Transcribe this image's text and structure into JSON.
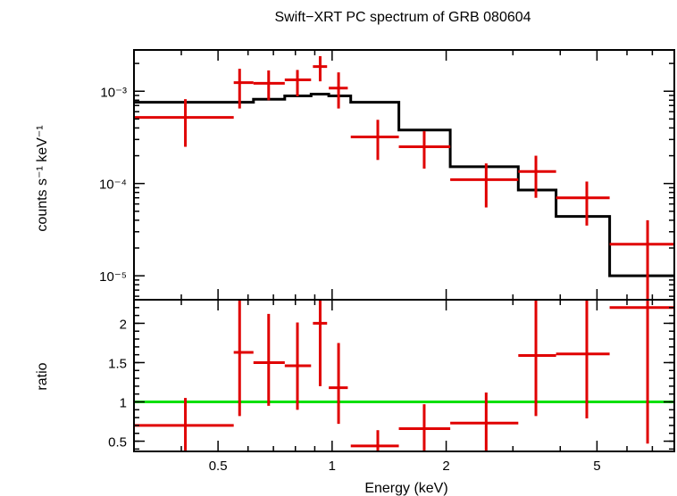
{
  "chart_data": {
    "type": "scatter",
    "title": "Swift−XRT PC spectrum of GRB 080604",
    "xlabel": "Energy (keV)",
    "xscale": "log",
    "xlim": [
      0.3,
      8.0
    ],
    "xticks": [
      {
        "value": 0.5,
        "label": "0.5"
      },
      {
        "value": 1,
        "label": "1"
      },
      {
        "value": 2,
        "label": "2"
      },
      {
        "value": 5,
        "label": "5"
      }
    ],
    "panels": [
      {
        "name": "spectrum",
        "ylabel": "counts s⁻¹ keV⁻¹",
        "yscale": "log",
        "ylim": [
          5.5e-06,
          0.0028
        ],
        "yticks": [
          {
            "value": 0.001,
            "label": "10⁻³"
          },
          {
            "value": 0.0001,
            "label": "10⁻⁴"
          },
          {
            "value": 1e-05,
            "label": "10⁻⁵"
          }
        ],
        "data": {
          "color": "#e00000",
          "points": [
            {
              "x": 0.41,
              "xlo": 0.3,
              "xhi": 0.55,
              "y": 0.00052,
              "ylo": 0.00025,
              "yhi": 0.00082
            },
            {
              "x": 0.57,
              "xlo": 0.55,
              "xhi": 0.62,
              "y": 0.00124,
              "ylo": 0.00065,
              "yhi": 0.00175
            },
            {
              "x": 0.68,
              "xlo": 0.62,
              "xhi": 0.75,
              "y": 0.00122,
              "ylo": 0.0008,
              "yhi": 0.00168
            },
            {
              "x": 0.81,
              "xlo": 0.75,
              "xhi": 0.88,
              "y": 0.00133,
              "ylo": 0.00088,
              "yhi": 0.0017
            },
            {
              "x": 0.93,
              "xlo": 0.89,
              "xhi": 0.97,
              "y": 0.00185,
              "ylo": 0.00128,
              "yhi": 0.0024
            },
            {
              "x": 1.04,
              "xlo": 0.98,
              "xhi": 1.1,
              "y": 0.00108,
              "ylo": 0.00065,
              "yhi": 0.0016
            },
            {
              "x": 1.32,
              "xlo": 1.12,
              "xhi": 1.5,
              "y": 0.00032,
              "ylo": 0.00018,
              "yhi": 0.00049
            },
            {
              "x": 1.75,
              "xlo": 1.5,
              "xhi": 2.05,
              "y": 0.00025,
              "ylo": 0.000145,
              "yhi": 0.00037
            },
            {
              "x": 2.55,
              "xlo": 2.05,
              "xhi": 3.1,
              "y": 0.00011,
              "ylo": 5.5e-05,
              "yhi": 0.000165
            },
            {
              "x": 3.45,
              "xlo": 3.1,
              "xhi": 3.9,
              "y": 0.000135,
              "ylo": 7e-05,
              "yhi": 0.0002
            },
            {
              "x": 4.7,
              "xlo": 3.9,
              "xhi": 5.4,
              "y": 7e-05,
              "ylo": 3.5e-05,
              "yhi": 0.000105
            },
            {
              "x": 6.8,
              "xlo": 5.4,
              "xhi": 8.0,
              "y": 2.2e-05,
              "ylo": 5.5e-06,
              "yhi": 4e-05
            }
          ]
        },
        "model": {
          "color": "#000000",
          "steps": [
            {
              "x0": 0.3,
              "x1": 0.62,
              "y": 0.00076
            },
            {
              "x0": 0.62,
              "x1": 0.75,
              "y": 0.00082
            },
            {
              "x0": 0.75,
              "x1": 0.88,
              "y": 0.00089
            },
            {
              "x0": 0.88,
              "x1": 0.98,
              "y": 0.00093
            },
            {
              "x0": 0.98,
              "x1": 1.12,
              "y": 0.00089
            },
            {
              "x0": 1.12,
              "x1": 1.5,
              "y": 0.00076
            },
            {
              "x0": 1.5,
              "x1": 2.05,
              "y": 0.00038
            },
            {
              "x0": 2.05,
              "x1": 3.1,
              "y": 0.000152
            },
            {
              "x0": 3.1,
              "x1": 3.9,
              "y": 8.5e-05
            },
            {
              "x0": 3.9,
              "x1": 5.4,
              "y": 4.4e-05
            },
            {
              "x0": 5.4,
              "x1": 8.0,
              "y": 1e-05
            }
          ]
        }
      },
      {
        "name": "ratio",
        "ylabel": "ratio",
        "yscale": "linear",
        "ylim": [
          0.37,
          2.3
        ],
        "yticks": [
          {
            "value": 0.5,
            "label": "0.5"
          },
          {
            "value": 1,
            "label": "1"
          },
          {
            "value": 1.5,
            "label": "1.5"
          },
          {
            "value": 2,
            "label": "2"
          }
        ],
        "reference": {
          "y": 1,
          "color": "#00e000"
        },
        "data": {
          "color": "#e00000",
          "points": [
            {
              "x": 0.41,
              "xlo": 0.3,
              "xhi": 0.55,
              "y": 0.7,
              "ylo": 0.37,
              "yhi": 1.05
            },
            {
              "x": 0.57,
              "xlo": 0.55,
              "xhi": 0.62,
              "y": 1.63,
              "ylo": 0.82,
              "yhi": 2.3
            },
            {
              "x": 0.68,
              "xlo": 0.62,
              "xhi": 0.75,
              "y": 1.5,
              "ylo": 0.95,
              "yhi": 2.12
            },
            {
              "x": 0.81,
              "xlo": 0.75,
              "xhi": 0.88,
              "y": 1.46,
              "ylo": 0.9,
              "yhi": 2.01
            },
            {
              "x": 0.93,
              "xlo": 0.89,
              "xhi": 0.97,
              "y": 2.0,
              "ylo": 1.2,
              "yhi": 2.3
            },
            {
              "x": 1.04,
              "xlo": 0.98,
              "xhi": 1.1,
              "y": 1.18,
              "ylo": 0.72,
              "yhi": 1.75
            },
            {
              "x": 1.32,
              "xlo": 1.12,
              "xhi": 1.5,
              "y": 0.44,
              "ylo": 0.37,
              "yhi": 0.64
            },
            {
              "x": 1.75,
              "xlo": 1.5,
              "xhi": 2.05,
              "y": 0.66,
              "ylo": 0.37,
              "yhi": 0.97
            },
            {
              "x": 2.55,
              "xlo": 2.05,
              "xhi": 3.1,
              "y": 0.73,
              "ylo": 0.37,
              "yhi": 1.12
            },
            {
              "x": 3.45,
              "xlo": 3.1,
              "xhi": 3.9,
              "y": 1.59,
              "ylo": 0.82,
              "yhi": 2.3
            },
            {
              "x": 4.7,
              "xlo": 3.9,
              "xhi": 5.4,
              "y": 1.61,
              "ylo": 0.79,
              "yhi": 2.3
            },
            {
              "x": 6.8,
              "xlo": 5.4,
              "xhi": 8.0,
              "y": 2.2,
              "ylo": 0.47,
              "yhi": 2.3
            }
          ]
        }
      }
    ]
  }
}
